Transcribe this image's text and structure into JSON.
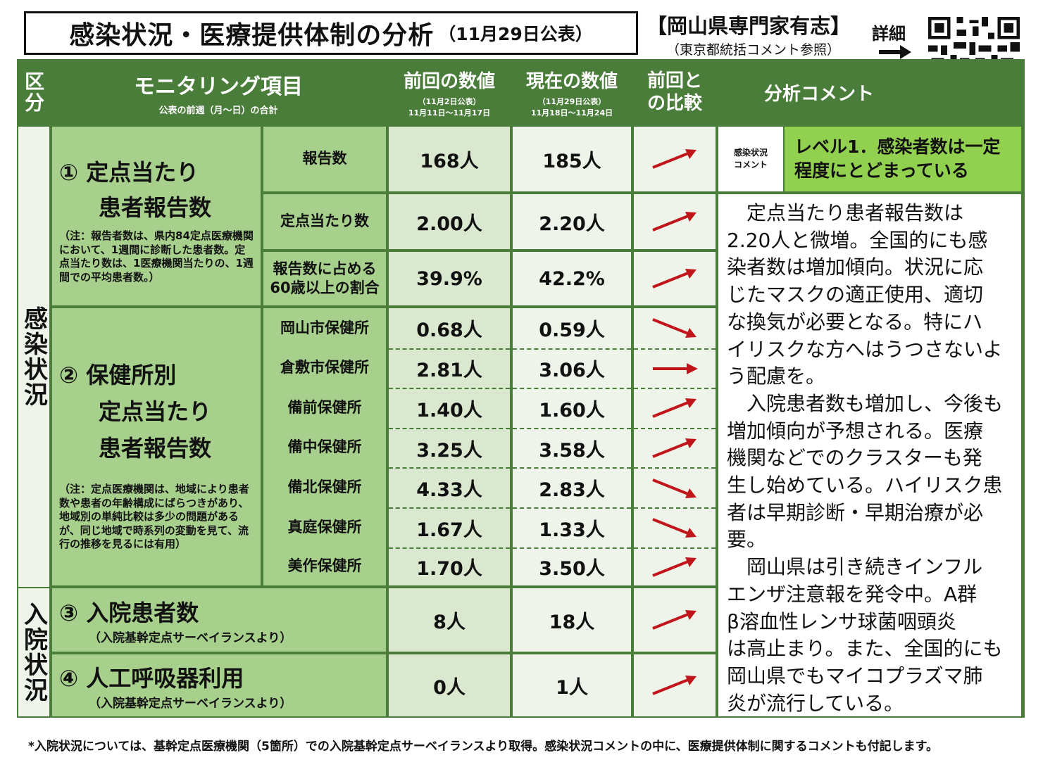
{
  "title": {
    "main": "感染状況・医療提供体制の分析",
    "date": "（11月29日公表）"
  },
  "org": "【岡山県専門家有志】",
  "ref": "（東京都統括コメント参照）",
  "detail_label": "詳細",
  "header": {
    "category": "区分",
    "item_title": "モニタリング項目",
    "item_sub": "公表の前週（月～日）の合計",
    "prev_title": "前回の数値",
    "prev_sub1": "（11月2日公表）",
    "prev_sub2": "11月11日～11月17日",
    "curr_title": "現在の数値",
    "curr_sub1": "（11月29日公表）",
    "curr_sub2": "11月18日～11月24日",
    "compare": "前回との比較",
    "comment": "分析コメント"
  },
  "sections": {
    "infection": "感染状況",
    "hospital": "入院状況"
  },
  "group1": {
    "title1": "① 定点当たり",
    "title2": "患者報告数",
    "note": "（注：報告者数は、県内84定点医療機関において、1週間に診断した患者数。定点当たり数は、1医療機関当たりの、1週間での平均患者数。）",
    "rows": [
      {
        "label": "報告数",
        "prev": "168人",
        "curr": "185人",
        "trend": "up"
      },
      {
        "label": "定点当たり数",
        "prev": "2.00人",
        "curr": "2.20人",
        "trend": "up"
      },
      {
        "label": "報告数に占める60歳以上の割合",
        "prev": "39.9%",
        "curr": "42.2%",
        "trend": "up"
      }
    ]
  },
  "group2": {
    "title1": "② 保健所別",
    "title2": "定点当たり",
    "title3": "患者報告数",
    "note": "（注：定点医療機関は、地域により患者数や患者の年齢構成にばらつきがあり、地域別の単純比較は多少の問題があるが、同じ地域で時系列の変動を見て、流行の推移を見るには有用）",
    "rows": [
      {
        "label": "岡山市保健所",
        "prev": "0.68人",
        "curr": "0.59人",
        "trend": "down"
      },
      {
        "label": "倉敷市保健所",
        "prev": "2.81人",
        "curr": "3.06人",
        "trend": "flat"
      },
      {
        "label": "備前保健所",
        "prev": "1.40人",
        "curr": "1.60人",
        "trend": "up"
      },
      {
        "label": "備中保健所",
        "prev": "3.25人",
        "curr": "3.58人",
        "trend": "up"
      },
      {
        "label": "備北保健所",
        "prev": "4.33人",
        "curr": "2.83人",
        "trend": "down"
      },
      {
        "label": "真庭保健所",
        "prev": "1.67人",
        "curr": "1.33人",
        "trend": "down"
      },
      {
        "label": "美作保健所",
        "prev": "1.70人",
        "curr": "3.50人",
        "trend": "up"
      }
    ]
  },
  "group3": {
    "title": "③ 入院患者数",
    "sub": "（入院基幹定点サーベイランスより）",
    "prev": "8人",
    "curr": "18人",
    "trend": "up"
  },
  "group4": {
    "title": "④ 人工呼吸器利用",
    "sub": "（入院基幹定点サーベイランスより）",
    "prev": "0人",
    "curr": "1人",
    "trend": "up"
  },
  "comment": {
    "tag": "感染状況コメント",
    "level": "レベル1．感染者数は一定程度にとどまっている",
    "lines": [
      "　定点当たり患者報告数は",
      "2.20人と微増。全国的にも感",
      "染者数は増加傾向。状況に応",
      "じたマスクの適正使用、適切",
      "な換気が必要となる。特にハ",
      "イリスクな方へはうつさないよ",
      "う配慮を。",
      "　入院患者数も増加し、今後も",
      "増加傾向が予想される。医療",
      "機関などでのクラスターも発",
      "生し始めている。ハイリスク患",
      "者は早期診断・早期治療が必",
      "要。",
      "　岡山県は引き続きインフル",
      "エンザ注意報を発令中。A群",
      "β溶血性レンサ球菌咽頭炎",
      "は高止まり。また、全国的にも",
      "岡山県でもマイコプラズマ肺",
      "炎が流行している。"
    ]
  },
  "footer": "*入院状況については、基幹定点医療機関（5箇所）での入院基幹定点サーベイランスより取得。感染状況コメントの中に、医療提供体制に関するコメントも付記します。",
  "colors": {
    "green_dark": "#4a7d3a",
    "green_light": "#a8d08d",
    "arrow_red": "#c0161b"
  },
  "icons": {
    "qr": "qr-code-icon",
    "arrow": "arrow-right-icon"
  }
}
